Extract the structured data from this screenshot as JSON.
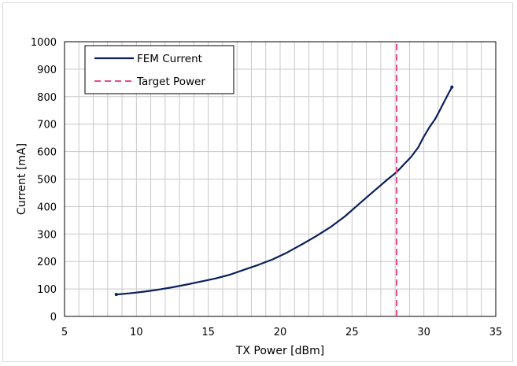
{
  "chart_data": {
    "type": "line",
    "title": "",
    "xlabel": "TX Power [dBm]",
    "ylabel": "Current [mA]",
    "xlim": [
      5,
      35
    ],
    "ylim": [
      0,
      1000
    ],
    "x_ticks": [
      5,
      10,
      15,
      20,
      25,
      30,
      35
    ],
    "y_ticks": [
      0,
      100,
      200,
      300,
      400,
      500,
      600,
      700,
      800,
      900,
      1000
    ],
    "x_minor_step": 1,
    "y_major_step": 100,
    "grid": true,
    "legend_position": "top-left",
    "series": [
      {
        "name": "FEM Current",
        "color": "#0b1f5c",
        "style": "solid",
        "x": [
          8.6,
          9.5,
          10.5,
          11.5,
          12.5,
          13.5,
          14.5,
          15.5,
          16.5,
          17.5,
          18.5,
          19.5,
          20.5,
          21.5,
          22.5,
          23.5,
          24.5,
          25.5,
          26.5,
          27.5,
          28.1,
          28.6,
          29.1,
          29.6,
          30.0,
          30.4,
          30.8,
          31.1,
          31.4,
          31.7,
          31.95
        ],
        "y": [
          80,
          84,
          90,
          97,
          106,
          116,
          127,
          138,
          152,
          170,
          188,
          208,
          233,
          262,
          292,
          325,
          364,
          410,
          455,
          500,
          525,
          553,
          580,
          615,
          655,
          690,
          720,
          750,
          780,
          810,
          835
        ]
      },
      {
        "name": "Target Power",
        "color": "#ec4a8f",
        "style": "dashed",
        "x": [
          28.1,
          28.1
        ],
        "y": [
          0,
          1000
        ]
      }
    ]
  }
}
